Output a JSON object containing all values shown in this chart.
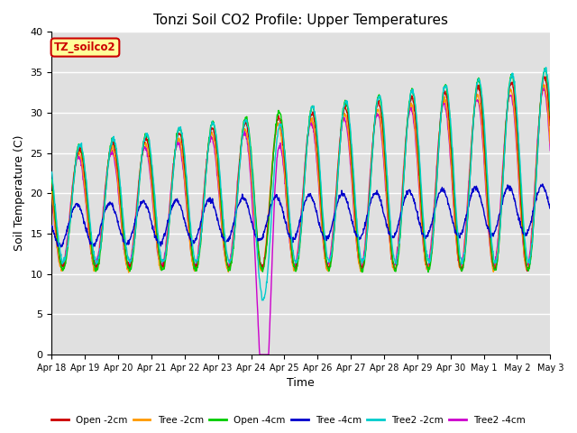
{
  "title": "Tonzi Soil CO2 Profile: Upper Temperatures",
  "xlabel": "Time",
  "ylabel": "Soil Temperature (C)",
  "ylim": [
    0,
    40
  ],
  "background_color": "#e0e0e0",
  "series": [
    {
      "label": "Open -2cm",
      "color": "#cc0000"
    },
    {
      "label": "Tree -2cm",
      "color": "#ff9900"
    },
    {
      "label": "Open -4cm",
      "color": "#00cc00"
    },
    {
      "label": "Tree -4cm",
      "color": "#0000cc"
    },
    {
      "label": "Tree2 -2cm",
      "color": "#00cccc"
    },
    {
      "label": "Tree2 -4cm",
      "color": "#cc00cc"
    }
  ],
  "tick_labels": [
    "Apr 18",
    "Apr 19",
    "Apr 20",
    "Apr 21",
    "Apr 22",
    "Apr 23",
    "Apr 24",
    "Apr 25",
    "Apr 26",
    "Apr 27",
    "Apr 28",
    "Apr 29",
    "Apr 30",
    "May 1",
    "May 2",
    "May 3"
  ],
  "annotation_text": "TZ_soilco2",
  "annotation_color": "#cc0000",
  "annotation_bg": "#ffff99",
  "annotation_border": "#cc0000",
  "yticks": [
    0,
    5,
    10,
    15,
    20,
    25,
    30,
    35,
    40
  ],
  "title_fontsize": 11,
  "tick_fontsize": 7,
  "ylabel_fontsize": 9,
  "xlabel_fontsize": 9
}
